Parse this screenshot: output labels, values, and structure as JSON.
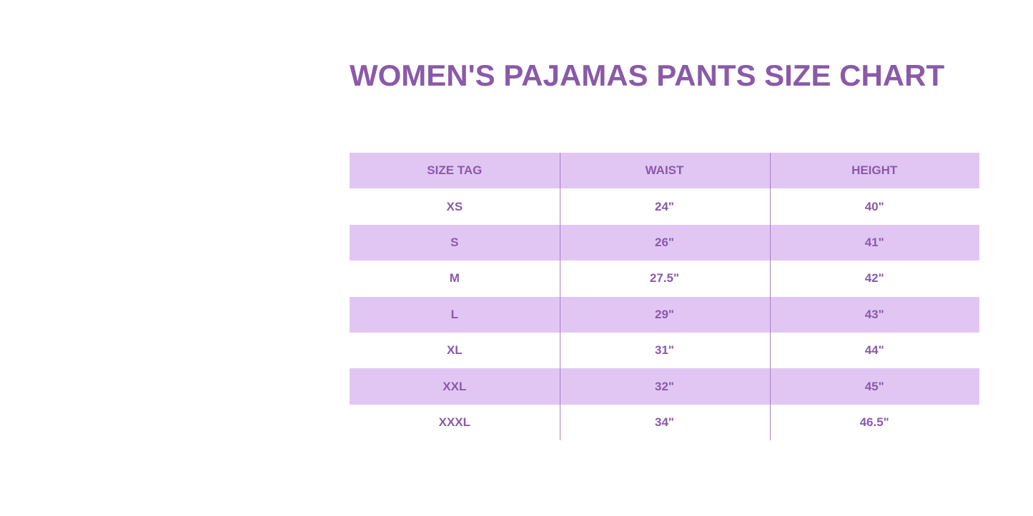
{
  "title": "WOMEN'S PAJAMAS PANTS SIZE CHART",
  "colors": {
    "text": "#8a5aa8",
    "row_fill": "#e1c6f4"
  },
  "table": {
    "headers": [
      "SIZE TAG",
      "WAIST",
      "HEIGHT"
    ],
    "rows": [
      [
        "XS",
        "24\"",
        "40\""
      ],
      [
        "S",
        "26\"",
        "41\""
      ],
      [
        "M",
        "27.5\"",
        "42\""
      ],
      [
        "L",
        "29\"",
        "43\""
      ],
      [
        "XL",
        "31\"",
        "44\""
      ],
      [
        "XXL",
        "32\"",
        "45\""
      ],
      [
        "XXXL",
        "34\"",
        "46.5\""
      ]
    ]
  }
}
